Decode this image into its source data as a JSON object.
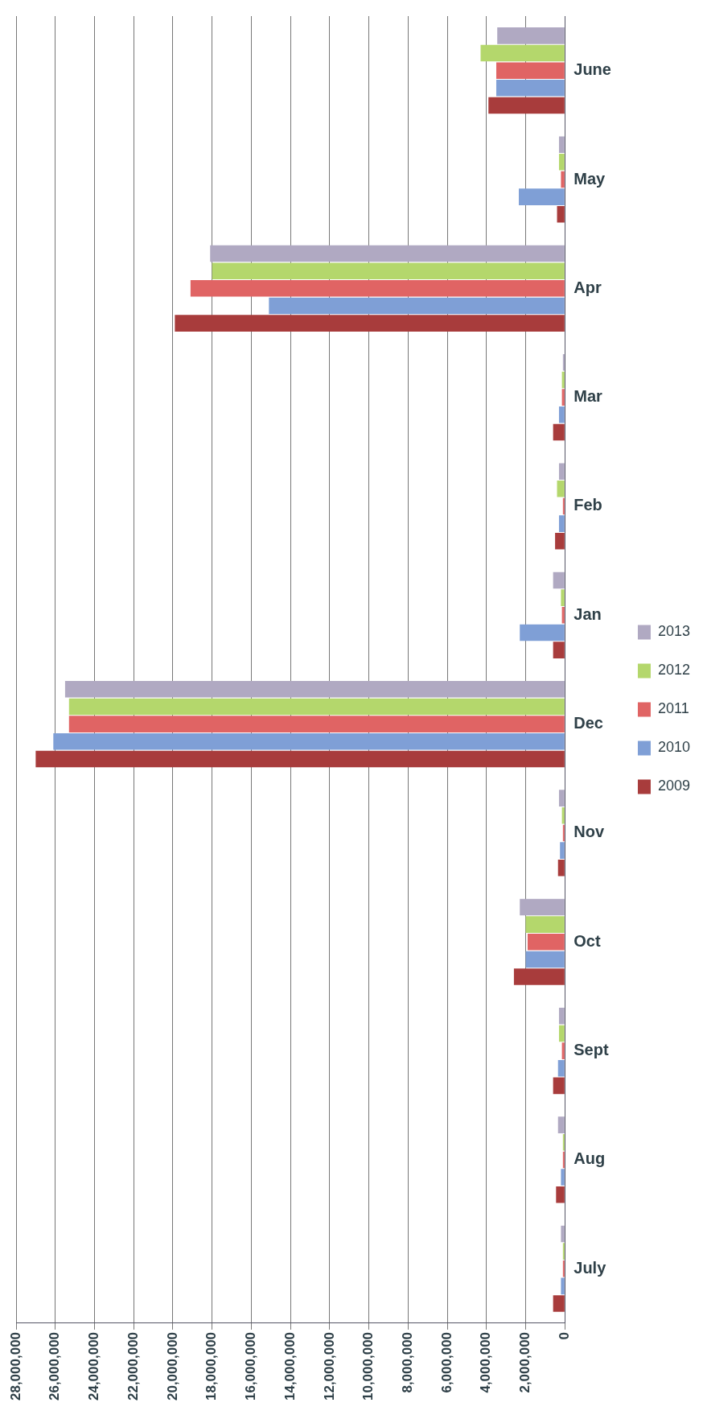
{
  "chart_data": {
    "type": "bar",
    "orientation": "horizontal",
    "categories": [
      "June",
      "May",
      "Apr",
      "Mar",
      "Feb",
      "Jan",
      "Dec",
      "Nov",
      "Oct",
      "Sept",
      "Aug",
      "July"
    ],
    "series": [
      {
        "name": "2009",
        "color": "#a83c3c",
        "values": [
          3900000,
          400000,
          19900000,
          600000,
          500000,
          600000,
          27000000,
          350000,
          2600000,
          600000,
          450000,
          600000
        ]
      },
      {
        "name": "2010",
        "color": "#7f9fd6",
        "values": [
          3500000,
          2350000,
          15100000,
          300000,
          300000,
          2300000,
          26100000,
          250000,
          2000000,
          350000,
          200000,
          200000
        ]
      },
      {
        "name": "2011",
        "color": "#e06464",
        "values": [
          3500000,
          200000,
          19100000,
          150000,
          100000,
          150000,
          25300000,
          100000,
          1900000,
          150000,
          100000,
          100000
        ]
      },
      {
        "name": "2012",
        "color": "#b4d76c",
        "values": [
          4300000,
          300000,
          18000000,
          150000,
          400000,
          200000,
          25300000,
          150000,
          2000000,
          300000,
          100000,
          100000
        ]
      },
      {
        "name": "2013",
        "color": "#b0a9c2",
        "values": [
          3450000,
          300000,
          18100000,
          100000,
          300000,
          600000,
          25500000,
          300000,
          2300000,
          300000,
          350000,
          200000
        ]
      }
    ],
    "xlim": [
      28000000,
      0
    ],
    "xticks": [
      {
        "value": 28000000,
        "label": "28,000,000"
      },
      {
        "value": 26000000,
        "label": "26,000,000"
      },
      {
        "value": 24000000,
        "label": "24,000,000"
      },
      {
        "value": 22000000,
        "label": "22,000,000"
      },
      {
        "value": 20000000,
        "label": "20,000,000"
      },
      {
        "value": 18000000,
        "label": "18,000,000"
      },
      {
        "value": 16000000,
        "label": "16,000,000"
      },
      {
        "value": 14000000,
        "label": "14,000,000"
      },
      {
        "value": 12000000,
        "label": "12,000,000"
      },
      {
        "value": 10000000,
        "label": "10,000,000"
      },
      {
        "value": 8000000,
        "label": "8,000,000"
      },
      {
        "value": 6000000,
        "label": "6,000,000"
      },
      {
        "value": 4000000,
        "label": "4,000,000"
      },
      {
        "value": 2000000,
        "label": "2,000,000"
      },
      0
    ],
    "grid": "x",
    "legend": "right"
  }
}
